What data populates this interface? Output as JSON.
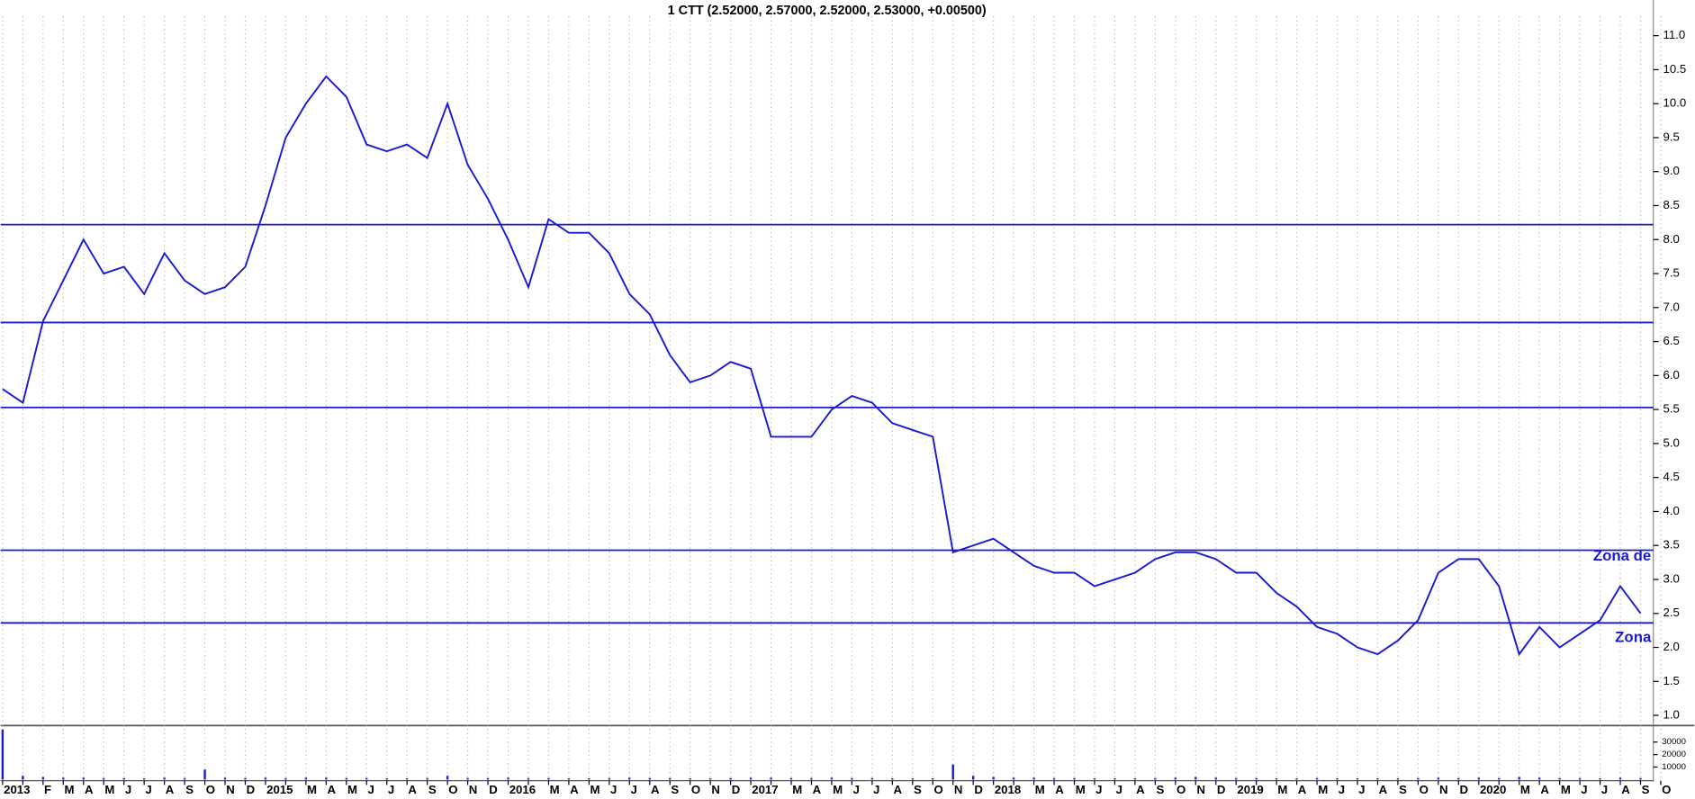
{
  "chart_data": {
    "type": "line",
    "title": "1 CTT (2.52000, 2.57000, 2.52000, 2.53000, +0.00500)",
    "categories": [
      "2013",
      null,
      "F",
      "M",
      "A",
      "M",
      "J",
      "J",
      "A",
      "S",
      "O",
      "N",
      "D",
      "2015",
      null,
      "M",
      "A",
      "M",
      "J",
      "J",
      "A",
      "S",
      "O",
      "N",
      "D",
      "2016",
      null,
      "M",
      "A",
      "M",
      "J",
      "J",
      "A",
      "S",
      "O",
      "N",
      "D",
      "2017",
      null,
      "M",
      "A",
      "M",
      "J",
      "J",
      "A",
      "S",
      "O",
      "N",
      "D",
      "2018",
      null,
      "M",
      "A",
      "M",
      "J",
      "J",
      "A",
      "S",
      "O",
      "N",
      "D",
      "2019",
      null,
      "M",
      "A",
      "M",
      "J",
      "J",
      "A",
      "S",
      "O",
      "N",
      "D",
      "2020",
      null,
      "M",
      "A",
      "M",
      "J",
      "J",
      "A",
      "S",
      "O"
    ],
    "values": [
      5.8,
      5.6,
      6.8,
      7.4,
      8.0,
      7.5,
      7.6,
      7.2,
      7.8,
      7.4,
      7.2,
      7.3,
      7.6,
      8.5,
      9.5,
      10.0,
      10.4,
      10.1,
      9.4,
      9.3,
      9.4,
      9.2,
      10.0,
      9.1,
      8.6,
      8.0,
      7.3,
      8.3,
      8.1,
      8.1,
      7.8,
      7.2,
      6.9,
      6.3,
      5.9,
      6.0,
      6.2,
      6.1,
      5.1,
      5.1,
      5.1,
      5.5,
      5.7,
      5.6,
      5.3,
      5.2,
      5.1,
      3.4,
      3.5,
      3.6,
      3.4,
      3.2,
      3.1,
      3.1,
      2.9,
      3.0,
      3.1,
      3.3,
      3.4,
      3.4,
      3.3,
      3.1,
      3.1,
      2.8,
      2.6,
      2.3,
      2.2,
      2.0,
      1.9,
      2.1,
      2.4,
      3.1,
      3.3,
      3.3,
      2.9,
      1.9,
      2.3,
      2.0,
      2.2,
      2.4,
      2.9,
      2.5,
      null
    ],
    "color": "#1a1ad0",
    "ylim": [
      0.85,
      11.35
    ],
    "yticks": [
      {
        "value": 1,
        "label": "1.0"
      },
      1.5,
      {
        "value": 2,
        "label": "2.0"
      },
      2.5,
      {
        "value": 3,
        "label": "3.0"
      },
      3.5,
      {
        "value": 4,
        "label": "4.0"
      },
      4.5,
      {
        "value": 5,
        "label": "5.0"
      },
      5.5,
      {
        "value": 6,
        "label": "6.0"
      },
      6.5,
      {
        "value": 7,
        "label": "7.0"
      },
      7.5,
      {
        "value": 8,
        "label": "8.0"
      },
      8.5,
      {
        "value": 9,
        "label": "9.0"
      },
      9.5,
      {
        "value": 10,
        "label": "10.0"
      },
      10.5,
      {
        "value": 11,
        "label": "11.0"
      }
    ],
    "hlines": [
      8.22,
      6.78,
      5.53,
      3.43,
      2.36
    ],
    "annotations": [
      "Zona de",
      "Zona"
    ],
    "grid": true,
    "volume": {
      "values": [
        40000,
        3000,
        2000,
        1500,
        1500,
        1200,
        1200,
        1000,
        1500,
        1200,
        8000,
        1500,
        1200,
        1500,
        1200,
        1500,
        1500,
        1200,
        1200,
        1000,
        1000,
        1200,
        3000,
        1200,
        1200,
        1500,
        1200,
        1200,
        1000,
        1000,
        1200,
        1500,
        1200,
        1200,
        1000,
        1000,
        1200,
        1500,
        1500,
        1200,
        1200,
        1500,
        1200,
        1200,
        1000,
        1000,
        1000,
        12000,
        3000,
        2000,
        1500,
        1500,
        1200,
        1200,
        1000,
        1000,
        1000,
        1200,
        1500,
        2000,
        1500,
        1200,
        1200,
        1000,
        1000,
        1200,
        1000,
        1000,
        1000,
        1000,
        1200,
        1500,
        1200,
        1500,
        1200,
        2000,
        1500,
        1200,
        1200,
        1000,
        1500,
        1200,
        null
      ],
      "color": "#1a1ad0",
      "ylim": [
        0,
        38000
      ],
      "yticks": [
        10000,
        20000,
        30000
      ]
    }
  }
}
